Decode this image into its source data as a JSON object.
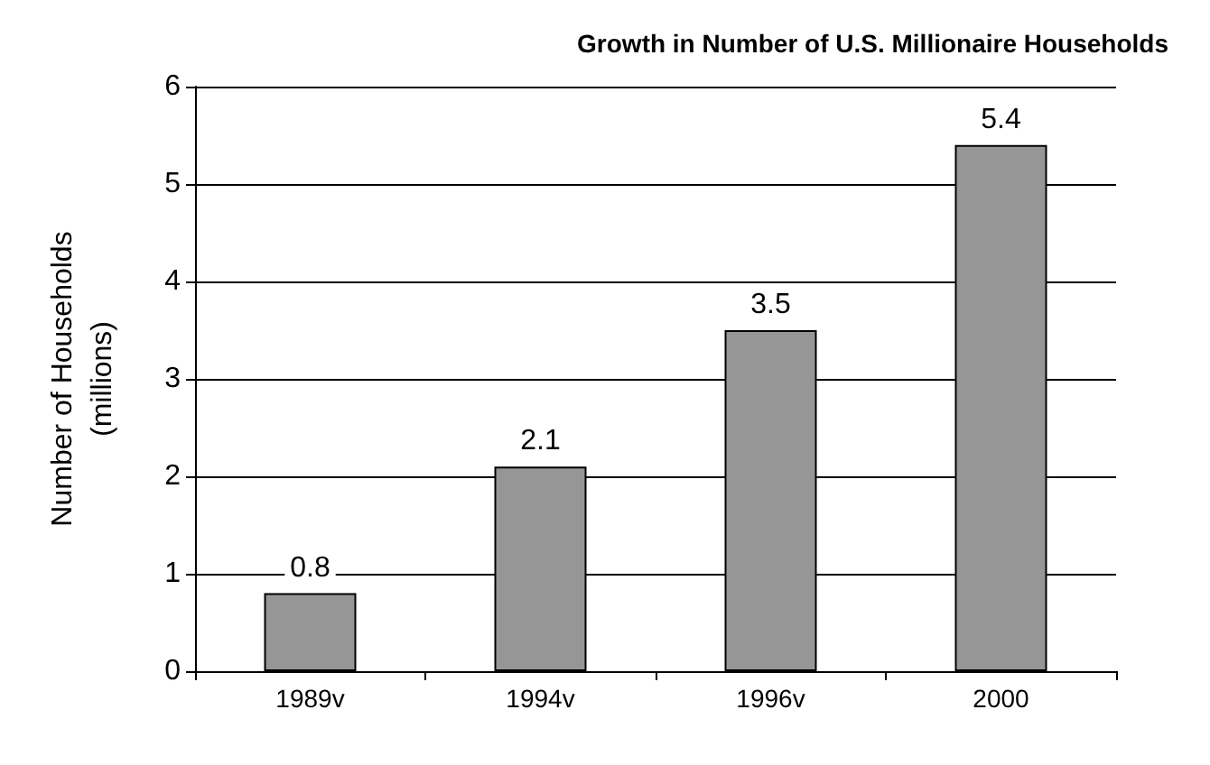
{
  "chart_data": {
    "type": "bar",
    "title": "Growth in Number of U.S. Millionaire Households",
    "ylabel": "Number of Households\n(millions)",
    "categories": [
      "1989v",
      "1994v",
      "1996v",
      "2000"
    ],
    "values": [
      0.8,
      2.1,
      3.5,
      5.4
    ],
    "color": "#969696",
    "ylim": [
      0,
      6
    ],
    "yticks": [
      0,
      1,
      2,
      3,
      4,
      5,
      6
    ],
    "grid": "y",
    "data_labels": true
  }
}
